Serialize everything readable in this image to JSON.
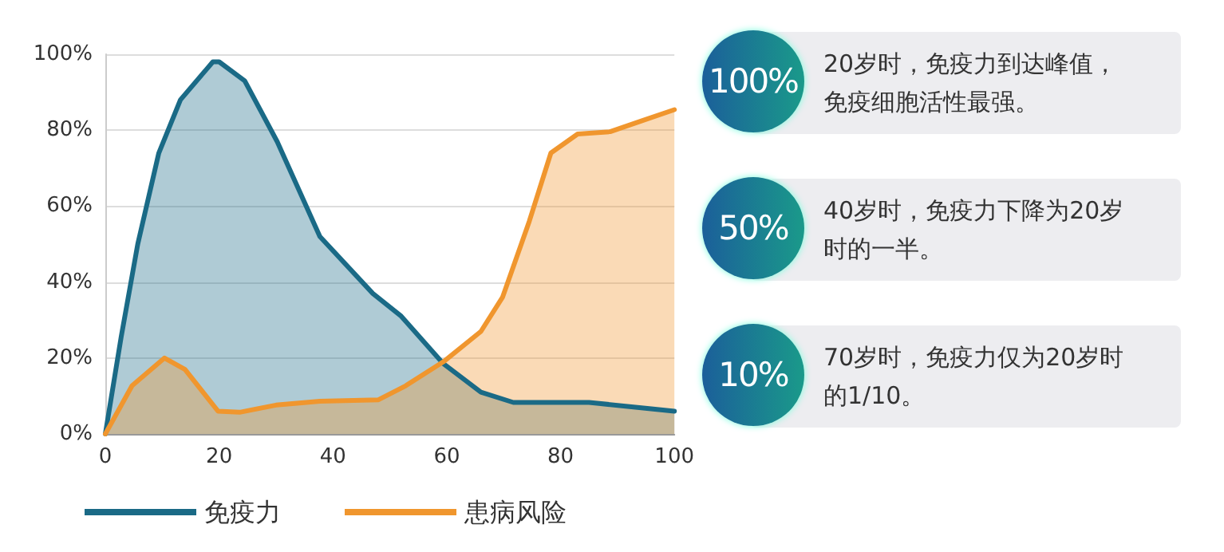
{
  "chart_data": {
    "type": "area",
    "x": [
      0,
      2.8,
      5.7,
      9.4,
      13.2,
      18.9,
      20,
      24.5,
      30.2,
      37.7,
      47,
      52,
      59.4,
      66,
      71.7,
      85,
      100
    ],
    "series": [
      {
        "name": "免疫力",
        "color": "#1a6a86",
        "values": [
          0,
          25.7,
          50,
          74,
          88,
          98,
          98,
          93,
          77,
          52,
          37,
          31,
          18.5,
          11,
          8.3,
          8.3,
          6
        ]
      },
      {
        "name": "患病风险",
        "color": "#f0962e",
        "x": [
          0,
          4.7,
          10.4,
          14,
          19.8,
          23.6,
          30,
          37.7,
          48,
          52.8,
          59.4,
          66,
          69.8,
          74.5,
          78.3,
          83,
          88.7,
          94.3,
          100
        ],
        "values": [
          0,
          12.7,
          20,
          17,
          6,
          5.7,
          7.6,
          8.6,
          9,
          12.7,
          19,
          27,
          36,
          56,
          74,
          79,
          79.6,
          82.5,
          85.4
        ]
      }
    ],
    "xlim": [
      0,
      100
    ],
    "xticks": [
      0,
      20,
      40,
      60,
      80,
      100
    ],
    "ylim": [
      0,
      100
    ],
    "yticks": [
      {
        "value": 0,
        "label": "0%"
      },
      {
        "value": 20,
        "label": "20%"
      },
      {
        "value": 40,
        "label": "40%"
      },
      {
        "value": 60,
        "label": "60%"
      },
      {
        "value": 80,
        "label": "80%"
      },
      {
        "value": 100,
        "label": "100%"
      }
    ],
    "grid": "y",
    "legend": "bottom left",
    "marker": "none",
    "line_style": "solid",
    "annotations": [
      "100%",
      "20岁时，免疫力到达峰值，免疫细胞活性最强。",
      "50%",
      "40岁时，免疫力下降为20岁时的一半。",
      "10%",
      "70岁时，免疫力仅为20岁时的1/10。"
    ]
  }
}
